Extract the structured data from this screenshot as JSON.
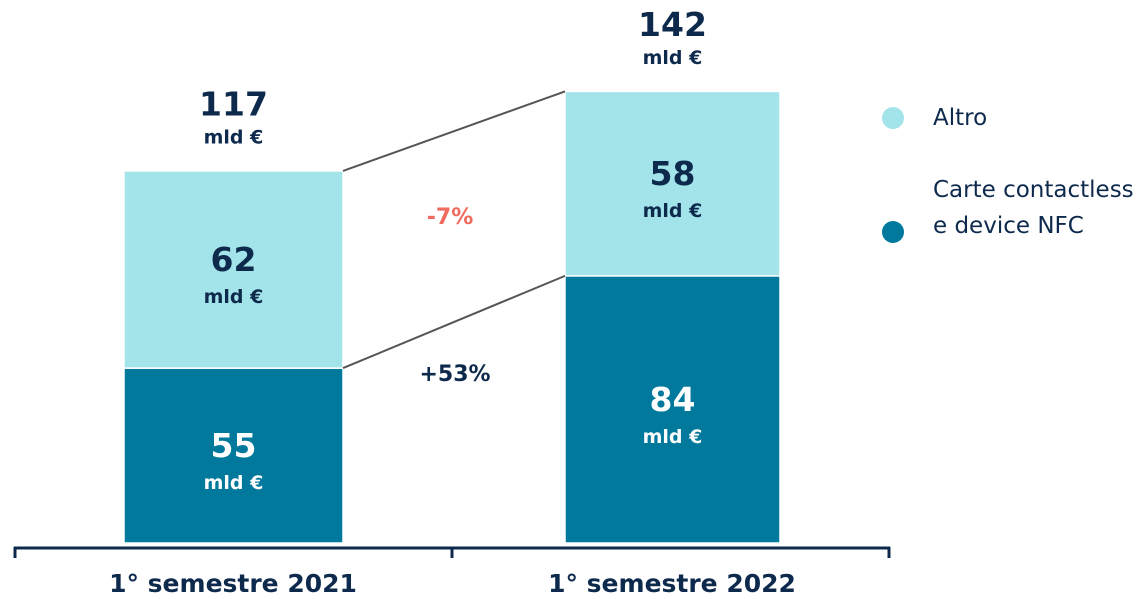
{
  "chart_data": {
    "type": "stacked_bar",
    "categories": [
      "1° semestre 2021",
      "1° semestre 2022"
    ],
    "series": [
      {
        "name": "Carte contactless e device NFC",
        "color": "#00799c",
        "values": [
          55,
          84
        ]
      },
      {
        "name": "Altro",
        "color": "#a3e4ea",
        "values": [
          62,
          58
        ]
      }
    ],
    "totals": [
      117,
      142
    ],
    "unit": "mld €",
    "annotations": [
      {
        "text": "-7%",
        "color": "#f06a5f"
      },
      {
        "text": "+53%",
        "color": "#0d2a4d"
      }
    ]
  }
}
